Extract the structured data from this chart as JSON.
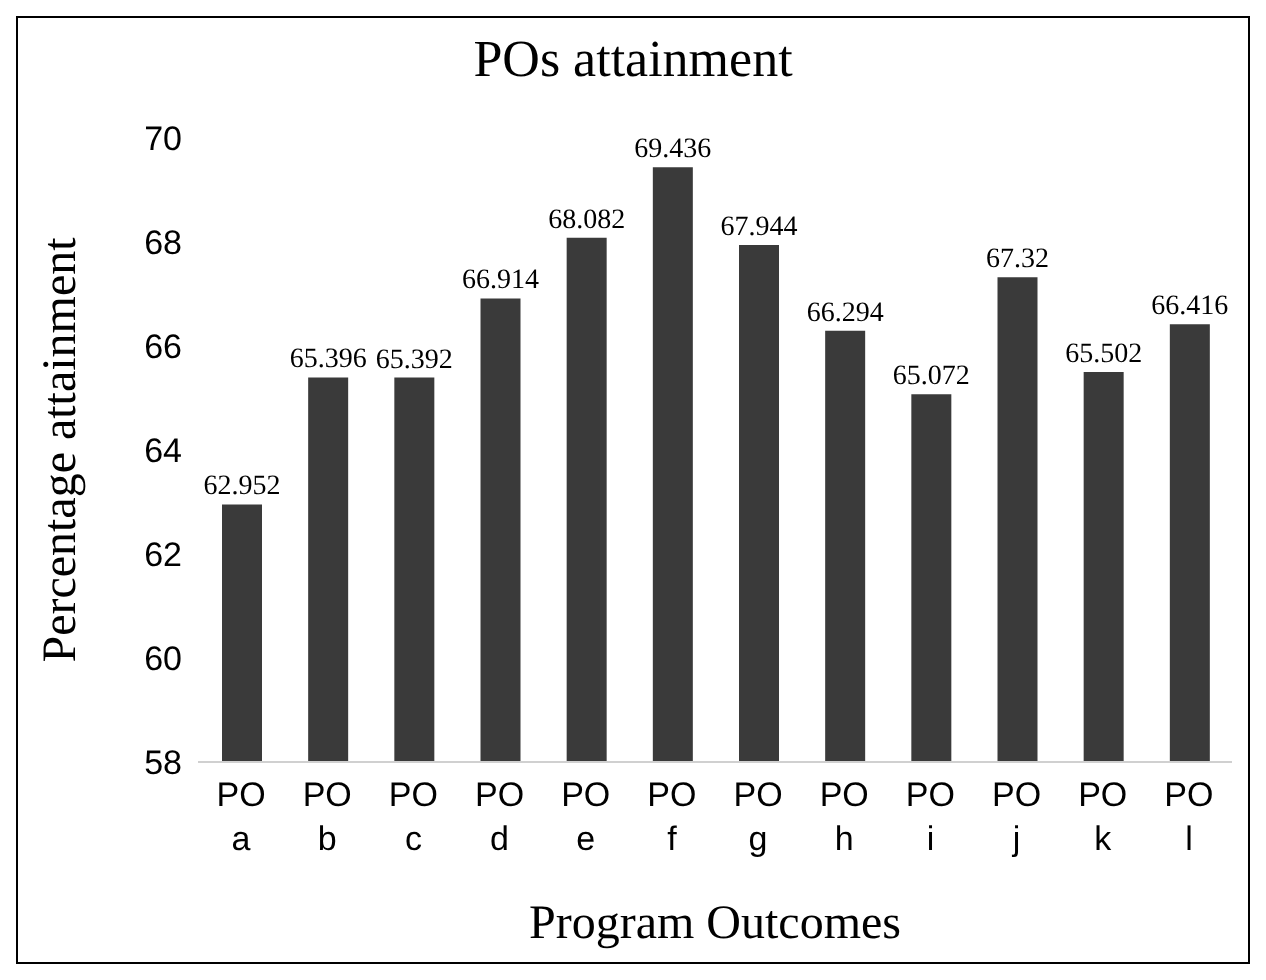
{
  "chart_data": {
    "type": "bar",
    "title": "POs attainment",
    "xlabel": "Program Outcomes",
    "ylabel": "Percentage attainment",
    "categories": [
      "PO a",
      "PO b",
      "PO c",
      "PO d",
      "PO e",
      "PO f",
      "PO g",
      "PO h",
      "PO i",
      "PO j",
      "PO k",
      "PO l"
    ],
    "values": [
      62.952,
      65.396,
      65.392,
      66.914,
      68.082,
      69.436,
      67.944,
      66.294,
      65.072,
      67.32,
      65.502,
      66.416
    ],
    "color": "#3a3a3a",
    "ylim": [
      58,
      70
    ],
    "yticks": [
      58,
      60,
      62,
      64,
      66,
      68,
      70
    ],
    "grid": false,
    "data_labels": true,
    "legend": false
  }
}
